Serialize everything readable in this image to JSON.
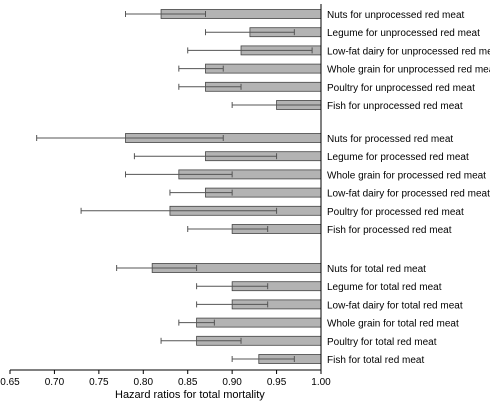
{
  "chart_data": {
    "type": "bar",
    "orientation": "horizontal",
    "xlabel": "Hazard ratios for total mortality",
    "xlim": [
      0.65,
      1.0
    ],
    "xticks": [
      "0.65",
      "0.70",
      "0.75",
      "0.80",
      "0.85",
      "0.90",
      "0.95",
      "1.00"
    ],
    "bar_color": "#b3b3b3",
    "groups": [
      {
        "items": [
          {
            "label": "Nuts for unprocessed red meat",
            "value": 0.82,
            "ci": [
              0.78,
              0.87
            ]
          },
          {
            "label": "Legume for unprocessed red meat",
            "value": 0.92,
            "ci": [
              0.87,
              0.97
            ]
          },
          {
            "label": "Low-fat dairy for unprocessed red meat",
            "value": 0.91,
            "ci": [
              0.85,
              0.99
            ]
          },
          {
            "label": "Whole grain for unprocessed red meat",
            "value": 0.87,
            "ci": [
              0.84,
              0.89
            ]
          },
          {
            "label": "Poultry for unprocessed red meat",
            "value": 0.87,
            "ci": [
              0.84,
              0.91
            ]
          },
          {
            "label": "Fish for unprocessed red meat",
            "value": 0.95,
            "ci": [
              0.9,
              1.0
            ]
          }
        ]
      },
      {
        "items": [
          {
            "label": "Nuts for processed red meat",
            "value": 0.78,
            "ci": [
              0.68,
              0.89
            ]
          },
          {
            "label": "Legume for processed red meat",
            "value": 0.87,
            "ci": [
              0.79,
              0.95
            ]
          },
          {
            "label": "Whole grain for processed red meat",
            "value": 0.84,
            "ci": [
              0.78,
              0.9
            ]
          },
          {
            "label": "Low-fat dairy for processed red meat",
            "value": 0.87,
            "ci": [
              0.83,
              0.9
            ]
          },
          {
            "label": "Poultry for processed red meat",
            "value": 0.83,
            "ci": [
              0.73,
              0.95
            ]
          },
          {
            "label": "Fish for processed red meat",
            "value": 0.9,
            "ci": [
              0.85,
              0.94
            ]
          }
        ]
      },
      {
        "items": [
          {
            "label": "Nuts for total red meat",
            "value": 0.81,
            "ci": [
              0.77,
              0.86
            ]
          },
          {
            "label": "Legume for total red meat",
            "value": 0.9,
            "ci": [
              0.86,
              0.94
            ]
          },
          {
            "label": "Low-fat dairy for total red meat",
            "value": 0.9,
            "ci": [
              0.86,
              0.94
            ]
          },
          {
            "label": "Whole grain for total red meat",
            "value": 0.86,
            "ci": [
              0.84,
              0.88
            ]
          },
          {
            "label": "Poultry for total red meat",
            "value": 0.86,
            "ci": [
              0.82,
              0.91
            ]
          },
          {
            "label": "Fish for total red meat",
            "value": 0.93,
            "ci": [
              0.9,
              0.97
            ]
          }
        ]
      }
    ]
  }
}
